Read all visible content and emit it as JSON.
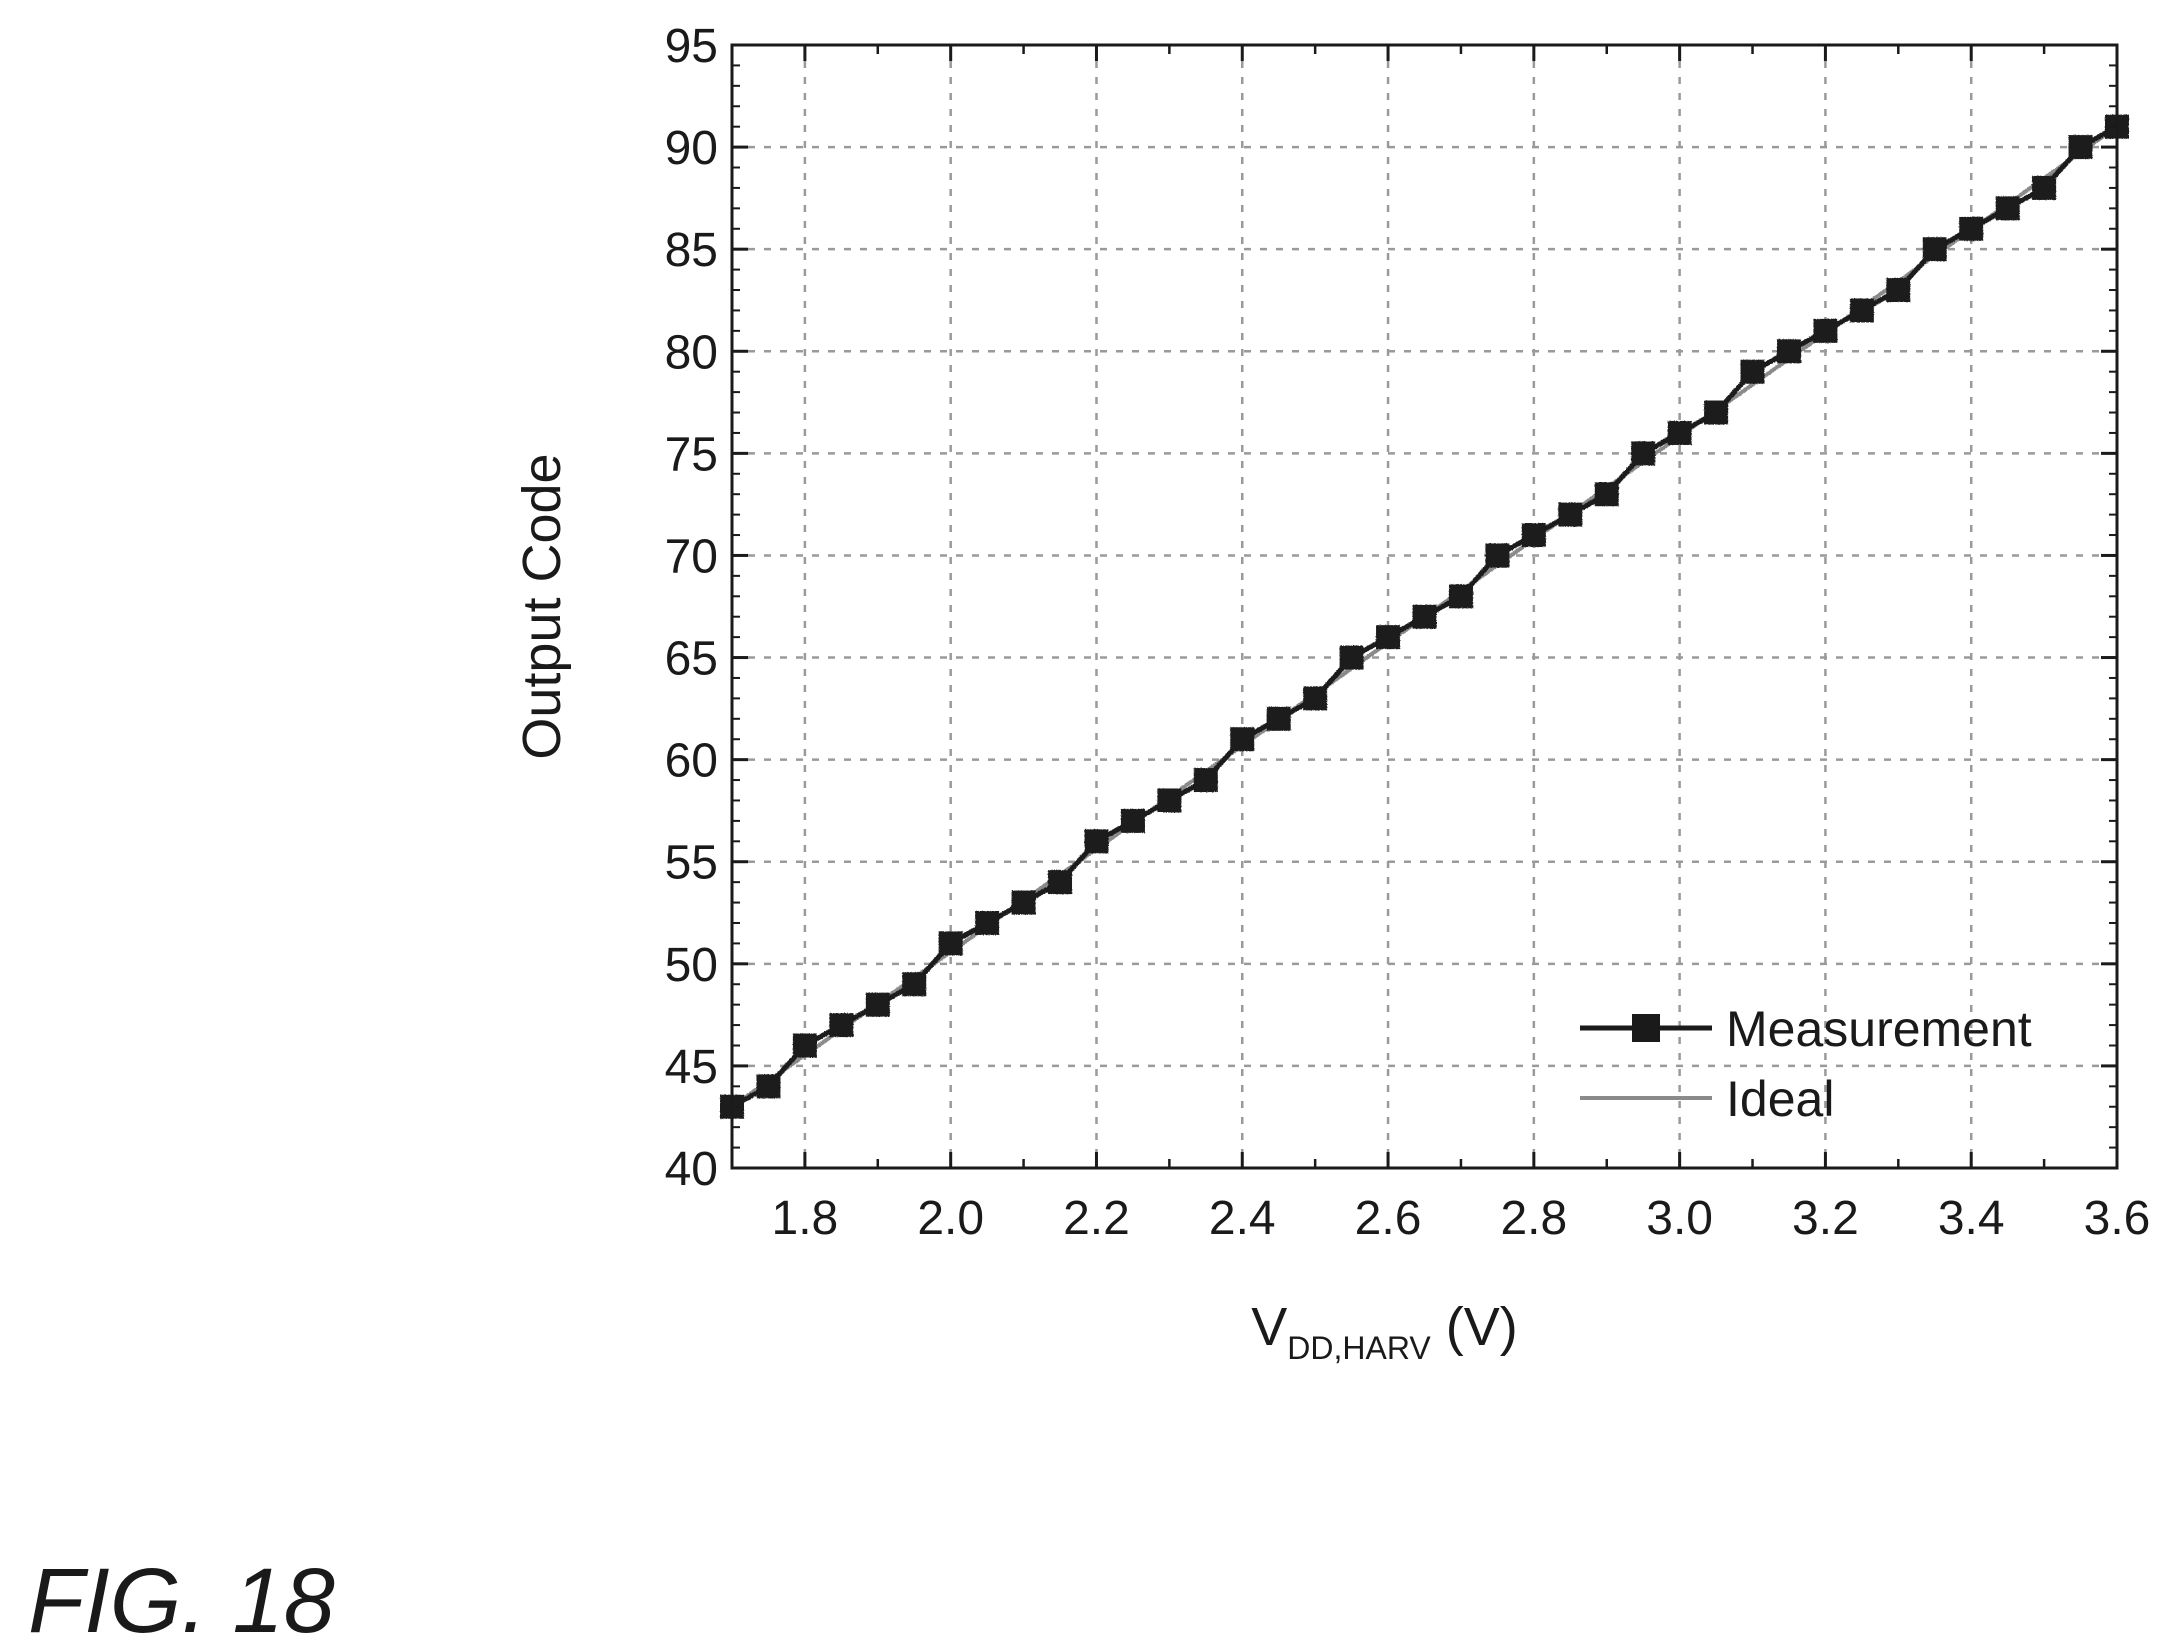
{
  "caption": "FIG. 18",
  "chart_data": {
    "type": "line",
    "xlabel": {
      "main": "V",
      "subscript": "DD,HARV",
      "suffix": " (V)"
    },
    "ylabel": "Output Code",
    "xlim": [
      1.7,
      3.6
    ],
    "ylim": [
      40,
      95
    ],
    "x_ticks": [
      1.8,
      2.0,
      2.2,
      2.4,
      2.6,
      2.8,
      3.0,
      3.2,
      3.4,
      3.6
    ],
    "x_tick_labels": [
      "1.8",
      "2.0",
      "2.2",
      "2.4",
      "2.6",
      "2.8",
      "3.0",
      "3.2",
      "3.4",
      "3.6"
    ],
    "y_ticks": [
      40,
      45,
      50,
      55,
      60,
      65,
      70,
      75,
      80,
      85,
      90,
      95
    ],
    "y_tick_labels": [
      "40",
      "45",
      "50",
      "55",
      "60",
      "65",
      "70",
      "75",
      "80",
      "85",
      "90",
      "95"
    ],
    "grid": true,
    "legend_position": "bottom-right",
    "series": [
      {
        "name": "Measurement",
        "style": "line-with-square-markers",
        "color": "#1a1a1a",
        "x": [
          1.7,
          1.75,
          1.8,
          1.85,
          1.9,
          1.95,
          2.0,
          2.05,
          2.1,
          2.15,
          2.2,
          2.25,
          2.3,
          2.35,
          2.4,
          2.45,
          2.5,
          2.55,
          2.6,
          2.65,
          2.7,
          2.75,
          2.8,
          2.85,
          2.9,
          2.95,
          3.0,
          3.05,
          3.1,
          3.15,
          3.2,
          3.25,
          3.3,
          3.35,
          3.4,
          3.45,
          3.5,
          3.55,
          3.6
        ],
        "y": [
          43,
          44,
          46,
          47,
          48,
          49,
          51,
          52,
          53,
          54,
          56,
          57,
          58,
          59,
          61,
          62,
          63,
          65,
          66,
          67,
          68,
          70,
          71,
          72,
          73,
          75,
          76,
          77,
          79,
          80,
          81,
          82,
          83,
          85,
          86,
          87,
          88,
          90,
          91
        ]
      },
      {
        "name": "Ideal",
        "style": "line",
        "color": "#8a8a8a",
        "x": [
          1.7,
          3.6
        ],
        "y": [
          43,
          91
        ]
      }
    ]
  }
}
